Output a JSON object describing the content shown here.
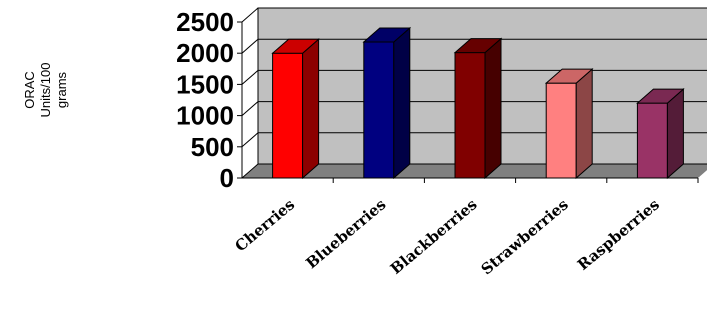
{
  "chart_data": {
    "type": "bar",
    "categories": [
      "Cherries",
      "Blueberries",
      "Blackberries",
      "Strawberries",
      "Raspberries"
    ],
    "values": [
      2000,
      2180,
      2010,
      1520,
      1200
    ],
    "colors": [
      "#ff0000",
      "#000080",
      "#800000",
      "#ff8080",
      "#993366"
    ],
    "ylabel": "ORAC Units/100 grams",
    "ylabel_lines": [
      "ORAC",
      "Units/100",
      "grams"
    ],
    "yticks": [
      0,
      500,
      1000,
      1500,
      2000,
      2500
    ],
    "ylim": [
      0,
      2500
    ],
    "grid": true,
    "style": "3d-column",
    "wall_color": "#c0c0c0",
    "floor_color": "#808080"
  }
}
